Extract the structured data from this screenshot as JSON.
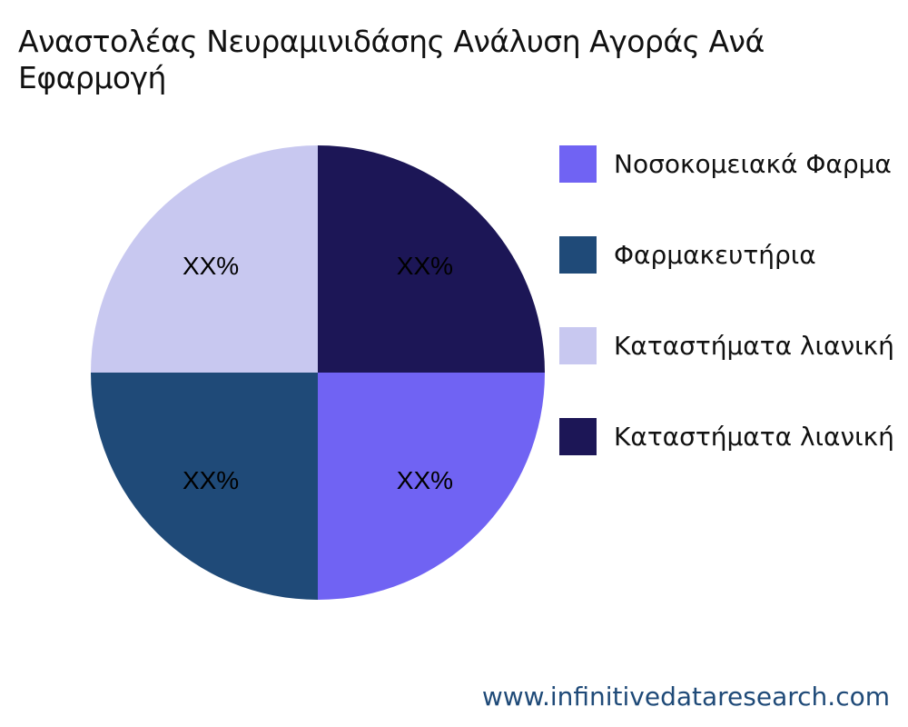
{
  "chart_data": {
    "type": "pie",
    "title": "Αναστολέας Νευραμινιδάσης Ανάλυση Αγοράς Ανά Εφαρμογή",
    "categories": [
      "Νοσοκομειακά Φαρμα",
      "Φαρμακευτήρια",
      "Καταστήματα λιανική",
      "Καταστήματα λιανική"
    ],
    "values": [
      25,
      25,
      25,
      25
    ],
    "data_labels": [
      "XX%",
      "XX%",
      "XX%",
      "XX%"
    ],
    "colors": [
      "#7063f3",
      "#1f4a78",
      "#c8c8f0",
      "#1c1656"
    ],
    "legend_position": "right"
  },
  "footer": {
    "website": "www.infinitivedataresearch.com"
  }
}
